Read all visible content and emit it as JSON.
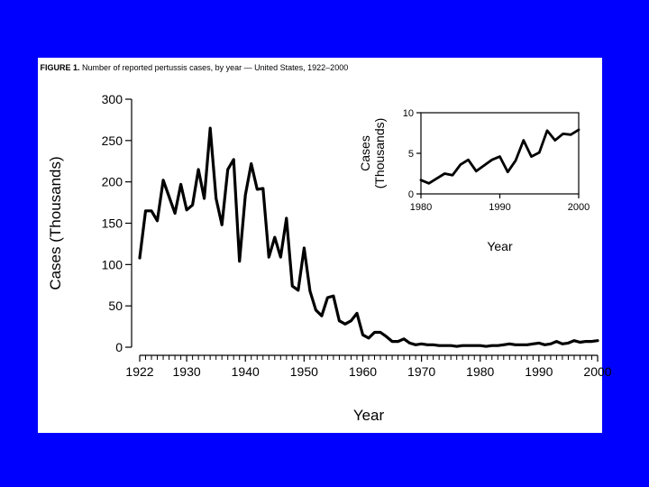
{
  "figure": {
    "label": "FIGURE 1.",
    "title": "Number of reported pertussis cases, by year — United States, 1922–2000"
  },
  "chart_data": [
    {
      "type": "line",
      "title": "Number of reported pertussis cases, by year — United States, 1922–2000",
      "xlabel": "Year",
      "ylabel": "Cases (Thousands)",
      "xlim": [
        1922,
        2000
      ],
      "ylim": [
        0,
        300
      ],
      "x_ticks": [
        1922,
        1930,
        1940,
        1950,
        1960,
        1970,
        1980,
        1990,
        2000
      ],
      "y_ticks": [
        0,
        50,
        100,
        150,
        200,
        250,
        300
      ],
      "grid": false,
      "series": [
        {
          "x": [
            1922,
            1923,
            1924,
            1925,
            1926,
            1927,
            1928,
            1929,
            1930,
            1931,
            1932,
            1933,
            1934,
            1935,
            1936,
            1937,
            1938,
            1939,
            1940,
            1941,
            1942,
            1943,
            1944,
            1945,
            1946,
            1947,
            1948,
            1949,
            1950,
            1951,
            1952,
            1953,
            1954,
            1955,
            1956,
            1957,
            1958,
            1959,
            1960,
            1961,
            1962,
            1963,
            1964,
            1965,
            1966,
            1967,
            1968,
            1969,
            1970,
            1971,
            1972,
            1973,
            1974,
            1975,
            1976,
            1977,
            1978,
            1979,
            1980,
            1981,
            1982,
            1983,
            1984,
            1985,
            1986,
            1987,
            1988,
            1989,
            1990,
            1991,
            1992,
            1993,
            1994,
            1995,
            1996,
            1997,
            1998,
            1999,
            2000
          ],
          "values": [
            108,
            165,
            165,
            153,
            202,
            182,
            162,
            197,
            166,
            172,
            215,
            180,
            265,
            180,
            148,
            215,
            227,
            104,
            184,
            222,
            191,
            192,
            109,
            133,
            109,
            156,
            74,
            69,
            120,
            68,
            45,
            38,
            60,
            62,
            32,
            28,
            32,
            41,
            15,
            11,
            18,
            18,
            13,
            7,
            7,
            10,
            5,
            3,
            4,
            3,
            3,
            2,
            2,
            2,
            1,
            2,
            2,
            2,
            2,
            1,
            2,
            2,
            3,
            4,
            3,
            3,
            3,
            4,
            5,
            3,
            4,
            7,
            4,
            5,
            8,
            6,
            7,
            7,
            8
          ]
        }
      ]
    },
    {
      "type": "line",
      "title": "",
      "xlabel": "Year",
      "ylabel": "Cases (Thousands)",
      "xlim": [
        1980,
        2000
      ],
      "ylim": [
        0,
        10
      ],
      "x_ticks": [
        1980,
        1990,
        2000
      ],
      "y_ticks": [
        0,
        5,
        10
      ],
      "grid": false,
      "series": [
        {
          "x": [
            1980,
            1981,
            1982,
            1983,
            1984,
            1985,
            1986,
            1987,
            1988,
            1989,
            1990,
            1991,
            1992,
            1993,
            1994,
            1995,
            1996,
            1997,
            1998,
            1999,
            2000
          ],
          "values": [
            1.7,
            1.3,
            1.9,
            2.5,
            2.3,
            3.6,
            4.2,
            2.8,
            3.5,
            4.2,
            4.6,
            2.7,
            4.1,
            6.6,
            4.6,
            5.1,
            7.8,
            6.6,
            7.4,
            7.3,
            7.9
          ]
        }
      ]
    }
  ]
}
